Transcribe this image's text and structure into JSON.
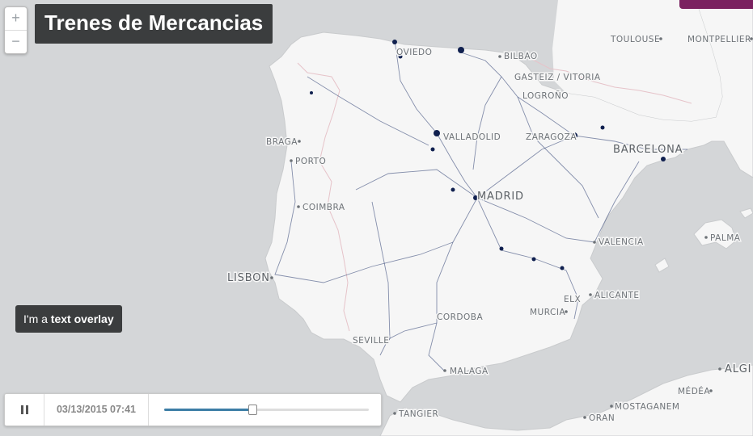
{
  "title": "Trenes de Mercancias",
  "overlay": {
    "prefix": "I'm a ",
    "bold": "text overlay"
  },
  "zoom": {
    "in_label": "+",
    "out_label": "−"
  },
  "timeline": {
    "date": "03/13/2015 07:41",
    "progress": 0.43
  },
  "colors": {
    "land": "#f6f6f6",
    "sea": "#d4d6d8",
    "rail": "#26386e",
    "accent": "#7b2160",
    "slider": "#3d7ea6"
  },
  "cities": {
    "toulouse": "TOULOUSE",
    "montpellier": "MONTPELLIER",
    "oviedo": "OVIEDO",
    "bilbao": "BILBAO",
    "gasteiz": "GASTEIZ / VITORIA",
    "logrono": "LOGROÑO",
    "valladolid": "VALLADOLID",
    "zaragoza": "ZARAGOZA",
    "barcelona": "BARCELONA",
    "braga": "BRAGA",
    "porto": "PORTO",
    "madrid": "MADRID",
    "coimbra": "COIMBRA",
    "palma": "PALMA",
    "valencia": "VALENCIA",
    "lisbon": "LISBON",
    "elx": "ELX",
    "alicante": "ALICANTE",
    "murcia": "MURCIA",
    "cordoba": "CORDOBA",
    "seville": "SEVILLE",
    "malaga": "MALAGA",
    "alger": "ALGI",
    "medea": "MÉDÉA",
    "mostaganem": "MOSTAGANEM",
    "tangier": "TANGIER",
    "oran": "ORAN"
  }
}
